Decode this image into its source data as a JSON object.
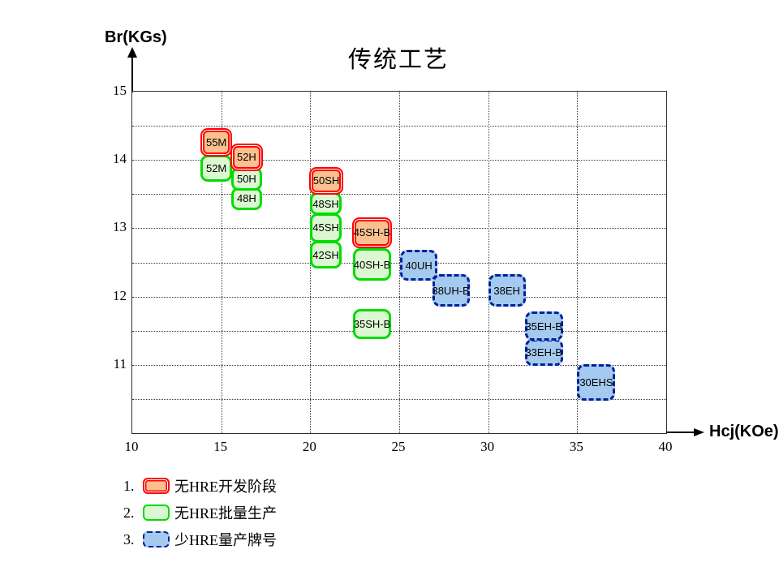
{
  "title": "传统工艺",
  "axes": {
    "x": {
      "label": "Hcj(KOe)",
      "ticks": [
        "10",
        "15",
        "20",
        "25",
        "30",
        "35",
        "40"
      ],
      "min": 10,
      "max": 40,
      "grid_step": 5
    },
    "y": {
      "label": "Br(KGs)",
      "ticks": [
        "15",
        "14",
        "13",
        "12",
        "11"
      ],
      "min": 10,
      "max": 15,
      "grid_step": 0.5
    }
  },
  "legend": {
    "items": [
      {
        "number": "1.",
        "label": "无HRE开发阶段",
        "category": "dev"
      },
      {
        "number": "2.",
        "label": "无HRE批量生产",
        "category": "mass"
      },
      {
        "number": "3.",
        "label": "少HRE量产牌号",
        "category": "lowhre"
      }
    ]
  },
  "colors": {
    "dev_fill": "#FAC090",
    "dev_border": "#FF0000",
    "mass_fill": "#DCF8D2",
    "mass_border": "#00DC00",
    "lowhre_fill": "#A5CAEF",
    "lowhre_border": "#002299",
    "grid": "#3A3A3A",
    "axis": "#303030"
  },
  "chart_data": {
    "type": "scatter",
    "title": "传统工艺",
    "xlabel": "Hcj(KOe)",
    "ylabel": "Br(KGs)",
    "xlim": [
      10,
      40
    ],
    "ylim": [
      10,
      15
    ],
    "grid": "dotted; vertical every 5 KOe, horizontal every 0.5 KGs",
    "legend_position": "below-left",
    "categories_legend": {
      "dev": "无HRE开发阶段",
      "mass": "无HRE批量生产",
      "lowhre": "少HRE量产牌号"
    },
    "boxes": [
      {
        "label": "52M",
        "category": "mass",
        "hcj": [
          13.85,
          15.6
        ],
        "br": [
          13.68,
          14.07
        ]
      },
      {
        "label": "48H",
        "category": "mass",
        "hcj": [
          15.55,
          17.3
        ],
        "br": [
          13.27,
          13.6
        ]
      },
      {
        "label": "50H",
        "category": "mass",
        "hcj": [
          15.55,
          17.3
        ],
        "br": [
          13.55,
          13.9
        ]
      },
      {
        "label": "55M",
        "category": "dev",
        "hcj": [
          13.85,
          15.6
        ],
        "br": [
          14.05,
          14.47
        ]
      },
      {
        "label": "52H",
        "category": "dev",
        "hcj": [
          15.5,
          17.35
        ],
        "br": [
          13.84,
          14.24
        ]
      },
      {
        "label": "42SH",
        "category": "mass",
        "hcj": [
          20.0,
          21.75
        ],
        "br": [
          12.41,
          12.81
        ]
      },
      {
        "label": "45SH",
        "category": "mass",
        "hcj": [
          20.0,
          21.75
        ],
        "br": [
          12.79,
          13.22
        ]
      },
      {
        "label": "48SH",
        "category": "mass",
        "hcj": [
          20.0,
          21.75
        ],
        "br": [
          13.19,
          13.53
        ]
      },
      {
        "label": "50SH",
        "category": "dev",
        "hcj": [
          19.95,
          21.85
        ],
        "br": [
          13.49,
          13.9
        ]
      },
      {
        "label": "40SH-B",
        "category": "mass",
        "hcj": [
          22.4,
          24.55
        ],
        "br": [
          12.23,
          12.71
        ]
      },
      {
        "label": "45SH-B",
        "category": "dev",
        "hcj": [
          22.35,
          24.6
        ],
        "br": [
          12.71,
          13.16
        ]
      },
      {
        "label": "35SH-B",
        "category": "mass",
        "hcj": [
          22.4,
          24.55
        ],
        "br": [
          11.38,
          11.82
        ]
      },
      {
        "label": "40UH",
        "category": "lowhre",
        "hcj": [
          25.05,
          27.15
        ],
        "br": [
          12.23,
          12.68
        ]
      },
      {
        "label": "38UH-B",
        "category": "lowhre",
        "hcj": [
          26.85,
          28.95
        ],
        "br": [
          11.85,
          12.33
        ]
      },
      {
        "label": "38EH",
        "category": "lowhre",
        "hcj": [
          30.0,
          32.1
        ],
        "br": [
          11.85,
          12.33
        ]
      },
      {
        "label": "33EH-B",
        "category": "lowhre",
        "hcj": [
          32.05,
          34.2
        ],
        "br": [
          10.99,
          11.38
        ]
      },
      {
        "label": "35EH-B",
        "category": "lowhre",
        "hcj": [
          32.05,
          34.2
        ],
        "br": [
          11.35,
          11.78
        ]
      },
      {
        "label": "30EHS",
        "category": "lowhre",
        "hcj": [
          35.0,
          37.15
        ],
        "br": [
          10.48,
          11.01
        ]
      }
    ]
  }
}
